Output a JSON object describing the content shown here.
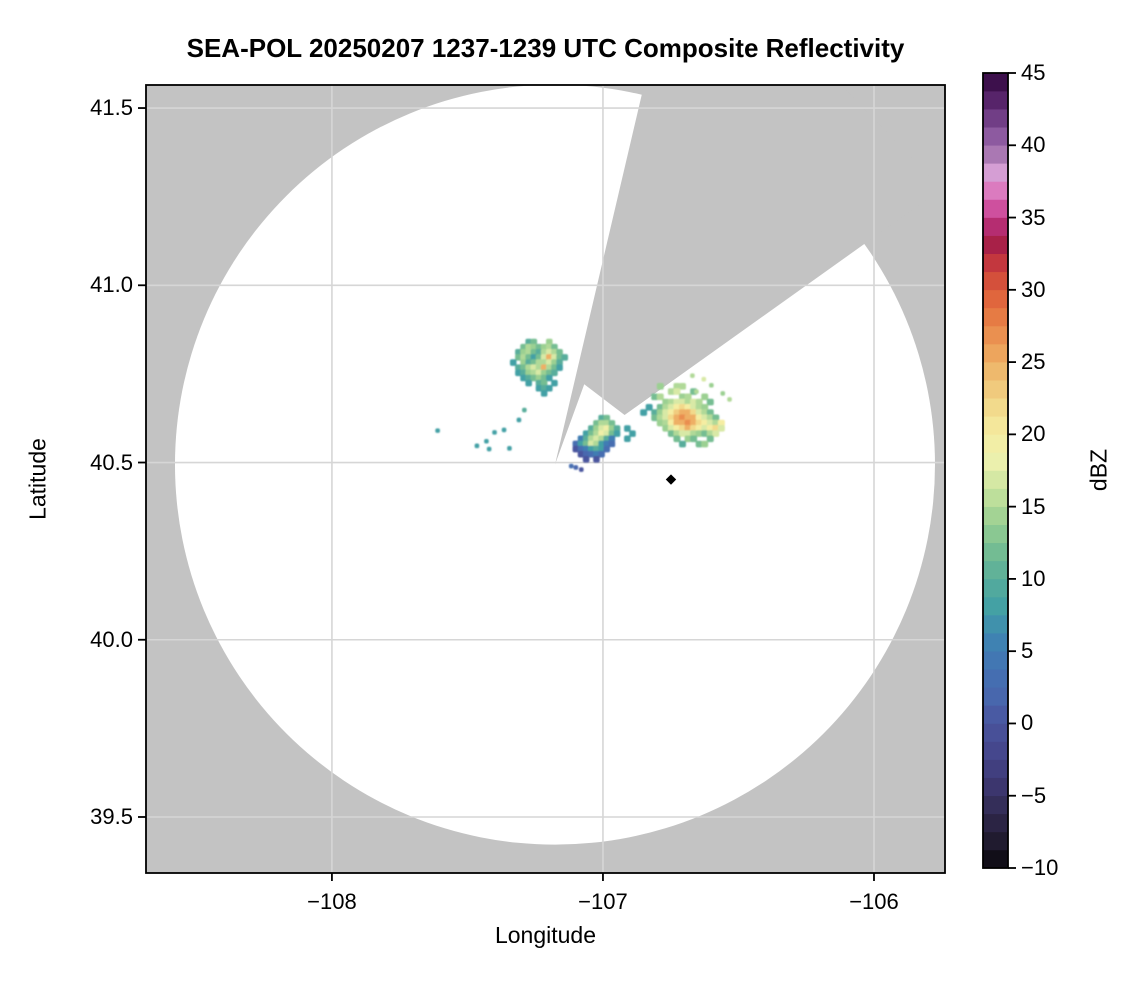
{
  "title": "SEA-POL 20250207 1237-1239 UTC Composite Reflectivity",
  "axes": {
    "xlabel": "Longitude",
    "ylabel": "Latitude",
    "xlim": [
      -108.686,
      -105.738
    ],
    "ylim": [
      39.342,
      41.565
    ],
    "xticks": [
      -108,
      -107,
      -106
    ],
    "xtick_labels": [
      "−108",
      "−107",
      "−106"
    ],
    "yticks": [
      41.5,
      41.0,
      40.5,
      40.0,
      39.5
    ],
    "ytick_labels": [
      "41.5",
      "41.0",
      "40.5",
      "40.0",
      "39.5"
    ],
    "grid": true
  },
  "colorbar": {
    "label": "dBZ",
    "vmin": -10,
    "vmax": 45,
    "ticks": [
      45,
      40,
      35,
      30,
      25,
      20,
      15,
      10,
      5,
      0,
      -5,
      -10
    ],
    "tick_labels": [
      "45",
      "40",
      "35",
      "30",
      "25",
      "20",
      "15",
      "10",
      "5",
      "0",
      "−5",
      "−10"
    ],
    "step_dbz": 1.25
  },
  "colors": {
    "background": "#ffffff",
    "nodata_gray": "#c3c3c3",
    "coverage_white": "#ffffff",
    "gridline": "#d6d6d6",
    "frame": "#000000",
    "marker": "#000000"
  },
  "chart_data": {
    "type": "heatmap",
    "subtype": "radar-composite-reflectivity-ppi",
    "units": "dBZ",
    "radar_site": {
      "lon": -107.177,
      "lat": 40.494,
      "range_lat_deg": 1.072
    },
    "blocked_sectors": [
      {
        "azimuth_start_deg": 13.2,
        "azimuth_end_deg": 20.0,
        "inner_radius_frac": 0.0
      },
      {
        "azimuth_start_deg": 20.0,
        "azimuth_end_deg": 54.5,
        "inner_radius_frac": 0.225
      }
    ],
    "site_marker": {
      "symbol": "diamond",
      "lon": -106.749,
      "lat": 40.452
    },
    "colormap_stops": [
      [
        -10,
        "#09070d"
      ],
      [
        -8,
        "#211c31"
      ],
      [
        -6,
        "#322b52"
      ],
      [
        -4,
        "#3e3975"
      ],
      [
        -2,
        "#45468c"
      ],
      [
        0,
        "#4a549e"
      ],
      [
        2,
        "#4868ae"
      ],
      [
        4,
        "#4373b3"
      ],
      [
        6,
        "#3e86b2"
      ],
      [
        8,
        "#43a0a5"
      ],
      [
        10,
        "#58ad9b"
      ],
      [
        12,
        "#75bd92"
      ],
      [
        14,
        "#9bd092"
      ],
      [
        16,
        "#c5e29d"
      ],
      [
        18,
        "#eaf0ae"
      ],
      [
        20,
        "#f5eda2"
      ],
      [
        22,
        "#f2d98b"
      ],
      [
        24,
        "#efbf72"
      ],
      [
        26,
        "#ec9f58"
      ],
      [
        28,
        "#e77d45"
      ],
      [
        30,
        "#dd5c39"
      ],
      [
        32,
        "#c1343e"
      ],
      [
        33.5,
        "#a01a4b"
      ],
      [
        35,
        "#c43a8c"
      ],
      [
        36.5,
        "#dc6eb7"
      ],
      [
        38,
        "#d9a2d7"
      ],
      [
        39.5,
        "#a674b0"
      ],
      [
        41,
        "#84519a"
      ],
      [
        42.5,
        "#643077"
      ],
      [
        44,
        "#451457"
      ],
      [
        45,
        "#30083a"
      ]
    ],
    "echo_clusters": [
      {
        "name": "northwest-cluster",
        "lon0": -107.35,
        "lat0": 40.84,
        "dlon": 0.019,
        "dlat": 0.0145,
        "grid": [
          [
            null,
            null,
            null,
            null,
            10,
            12,
            null,
            null,
            14,
            null,
            null,
            null,
            null
          ],
          [
            null,
            null,
            null,
            12,
            15,
            14,
            12,
            14,
            15,
            12,
            null,
            null,
            null
          ],
          [
            null,
            null,
            10,
            14,
            15,
            12,
            10,
            15,
            17,
            15,
            12,
            null,
            null
          ],
          [
            null,
            null,
            12,
            15,
            12,
            8,
            12,
            17,
            25,
            17,
            12,
            10,
            null
          ],
          [
            null,
            8,
            null,
            14,
            10,
            12,
            15,
            15,
            17,
            14,
            10,
            null,
            null
          ],
          [
            null,
            null,
            10,
            12,
            15,
            17,
            15,
            25,
            15,
            12,
            8,
            null,
            null
          ],
          [
            null,
            null,
            8,
            10,
            14,
            15,
            17,
            14,
            12,
            10,
            null,
            null,
            null
          ],
          [
            null,
            null,
            null,
            8,
            10,
            12,
            14,
            12,
            8,
            null,
            null,
            null,
            null
          ],
          [
            null,
            null,
            null,
            null,
            8,
            null,
            10,
            12,
            null,
            8,
            null,
            null,
            null
          ],
          [
            null,
            null,
            null,
            null,
            null,
            null,
            8,
            10,
            8,
            null,
            null,
            null,
            null
          ],
          [
            null,
            null,
            null,
            null,
            null,
            null,
            null,
            8,
            null,
            null,
            null,
            null,
            null
          ]
        ]
      },
      {
        "name": "central-cluster",
        "lon0": -107.1,
        "lat0": 40.625,
        "dlon": 0.019,
        "dlat": 0.0145,
        "grid": [
          [
            null,
            null,
            null,
            null,
            null,
            10,
            12,
            null,
            null,
            null,
            null,
            null
          ],
          [
            null,
            null,
            null,
            null,
            12,
            15,
            15,
            12,
            null,
            null,
            null,
            null
          ],
          [
            null,
            null,
            null,
            10,
            14,
            17,
            19,
            14,
            10,
            null,
            8,
            null
          ],
          [
            null,
            null,
            8,
            12,
            15,
            19,
            17,
            12,
            8,
            null,
            null,
            8
          ],
          [
            null,
            5,
            10,
            15,
            17,
            15,
            10,
            5,
            null,
            null,
            8,
            null
          ],
          [
            3,
            8,
            12,
            17,
            15,
            8,
            5,
            3,
            null,
            null,
            null,
            null
          ],
          [
            0,
            3,
            5,
            8,
            10,
            8,
            3,
            null,
            null,
            null,
            null,
            null
          ],
          [
            null,
            0,
            2,
            3,
            5,
            3,
            null,
            null,
            null,
            null,
            null,
            null
          ],
          [
            null,
            null,
            0,
            null,
            0,
            null,
            null,
            null,
            null,
            null,
            null,
            null
          ]
        ]
      },
      {
        "name": "east-cluster",
        "lon0": -106.85,
        "lat0": 40.715,
        "dlon": 0.0205,
        "dlat": 0.0148,
        "grid": [
          [
            null,
            null,
            null,
            14,
            null,
            null,
            15,
            15,
            null,
            null,
            null,
            null,
            null,
            null,
            null,
            null,
            null
          ],
          [
            null,
            null,
            null,
            null,
            null,
            15,
            17,
            null,
            null,
            12,
            null,
            null,
            null,
            null,
            null,
            null,
            null
          ],
          [
            null,
            null,
            12,
            15,
            null,
            null,
            null,
            14,
            15,
            null,
            null,
            14,
            null,
            null,
            null,
            null,
            null
          ],
          [
            null,
            null,
            null,
            null,
            14,
            15,
            17,
            17,
            15,
            17,
            15,
            null,
            12,
            null,
            null,
            null,
            null
          ],
          [
            null,
            8,
            null,
            12,
            15,
            17,
            20,
            22,
            20,
            17,
            15,
            14,
            null,
            null,
            null,
            null,
            null
          ],
          [
            8,
            null,
            10,
            14,
            17,
            20,
            23,
            25,
            25,
            22,
            17,
            15,
            12,
            null,
            null,
            null,
            null
          ],
          [
            null,
            null,
            12,
            15,
            17,
            22,
            25,
            27,
            25,
            25,
            20,
            17,
            15,
            12,
            null,
            null,
            null
          ],
          [
            null,
            null,
            null,
            14,
            15,
            20,
            25,
            25,
            27,
            25,
            22,
            20,
            17,
            15,
            20,
            null,
            null
          ],
          [
            null,
            null,
            null,
            null,
            14,
            17,
            20,
            22,
            25,
            22,
            20,
            17,
            20,
            22,
            17,
            null,
            null
          ],
          [
            null,
            null,
            null,
            null,
            null,
            12,
            15,
            17,
            17,
            15,
            14,
            12,
            15,
            17,
            null,
            null,
            null
          ],
          [
            null,
            null,
            null,
            null,
            null,
            null,
            12,
            null,
            14,
            12,
            null,
            null,
            12,
            null,
            null,
            null,
            null
          ],
          [
            null,
            null,
            null,
            null,
            null,
            null,
            null,
            10,
            null,
            null,
            12,
            14,
            null,
            null,
            null,
            null,
            null
          ]
        ]
      }
    ],
    "echo_dots": [
      [
        -107.61,
        40.59,
        8
      ],
      [
        -107.465,
        40.547,
        8
      ],
      [
        -107.43,
        40.56,
        8
      ],
      [
        -107.4,
        40.585,
        8
      ],
      [
        -107.365,
        40.592,
        8
      ],
      [
        -107.345,
        40.54,
        8
      ],
      [
        -107.42,
        40.538,
        8
      ],
      [
        -107.31,
        40.62,
        8
      ],
      [
        -107.29,
        40.648,
        10
      ],
      [
        -106.67,
        40.745,
        15
      ],
      [
        -106.628,
        40.735,
        17
      ],
      [
        -106.6,
        40.718,
        14
      ],
      [
        -106.655,
        40.7,
        15
      ],
      [
        -106.558,
        40.695,
        14
      ],
      [
        -106.533,
        40.678,
        15
      ],
      [
        -107.08,
        40.48,
        0
      ],
      [
        -107.1,
        40.486,
        2
      ],
      [
        -107.117,
        40.49,
        3
      ]
    ]
  }
}
